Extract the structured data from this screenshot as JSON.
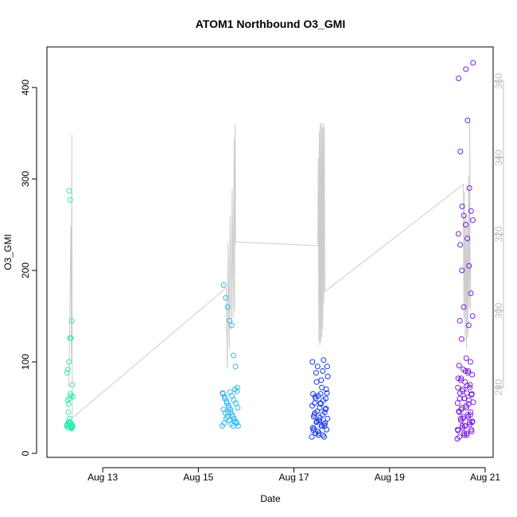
{
  "chart_data": {
    "type": "scatter",
    "title": "ATOM1 Northbound O3_GMI",
    "xlabel": "Date",
    "ylabel": "O3_GMI",
    "xlim": [
      "2016-08-11T20:00:00",
      "2016-08-21T04:00:00"
    ],
    "ylim": [
      0,
      440
    ],
    "x_ticks": [
      "Aug 13",
      "Aug 15",
      "Aug 17",
      "Aug 19",
      "Aug 21"
    ],
    "y_ticks": [
      0,
      100,
      200,
      300,
      400
    ],
    "y2_ticks": [
      280,
      300,
      320,
      340,
      360
    ],
    "y2lim": [
      265,
      363
    ],
    "line_series_color": "#cccccc",
    "point_colors": {
      "aug12": "#33e8b0",
      "aug15": "#2fb8f2",
      "aug17": "#1438f0",
      "aug20": "#7a1ee0"
    },
    "clusters": [
      {
        "date": "Aug 12",
        "color": "#33e8b0",
        "x_start": "2016-08-12T06:00",
        "x_end": "2016-08-12T09:00",
        "o3": [
          30,
          28,
          35,
          33,
          29,
          27,
          31,
          32,
          45,
          60,
          65,
          63,
          75,
          88,
          92,
          100,
          126,
          126,
          145,
          62,
          58,
          54,
          38,
          34,
          30,
          29,
          31,
          33,
          287,
          277,
          28,
          30
        ]
      },
      {
        "date": "Aug 15",
        "color": "#2fb8f2",
        "x_start": "2016-08-15T12:00",
        "x_end": "2016-08-15T20:00",
        "o3": [
          30,
          33,
          35,
          40,
          45,
          50,
          55,
          60,
          65,
          72,
          95,
          107,
          140,
          145,
          160,
          170,
          184,
          30,
          34,
          38,
          42,
          48,
          52,
          57,
          62,
          66,
          68,
          70,
          30,
          32,
          36,
          40,
          44,
          48,
          50,
          55,
          58,
          63,
          67,
          45,
          38,
          33
        ]
      },
      {
        "date": "Aug 17",
        "color": "#1438f0",
        "x_start": "2016-08-17T09:00",
        "x_end": "2016-08-17T17:00",
        "o3": [
          18,
          20,
          24,
          28,
          32,
          36,
          40,
          45,
          50,
          55,
          60,
          65,
          22,
          26,
          30,
          34,
          38,
          42,
          46,
          52,
          58,
          63,
          65,
          18,
          22,
          27,
          33,
          39,
          44,
          49,
          54,
          60,
          66,
          72,
          78,
          84,
          90,
          95,
          100,
          102,
          20,
          25,
          30,
          36,
          42,
          48,
          55,
          62,
          70,
          80,
          88,
          95,
          30,
          35
        ]
      },
      {
        "date": "Aug 20",
        "color": "#7a1ee0",
        "x_start": "2016-08-20T10:00",
        "x_end": "2016-08-20T18:00",
        "o3": [
          16,
          20,
          24,
          28,
          32,
          36,
          40,
          45,
          50,
          55,
          60,
          65,
          70,
          75,
          82,
          90,
          18,
          22,
          26,
          30,
          34,
          38,
          42,
          48,
          54,
          60,
          66,
          72,
          78,
          86,
          92,
          100,
          125,
          140,
          145,
          20,
          25,
          30,
          35,
          40,
          45,
          50,
          58,
          66,
          74,
          82,
          90,
          150,
          160,
          175,
          200,
          205,
          228,
          235,
          240,
          250,
          255,
          260,
          265,
          270,
          290,
          330,
          364,
          410,
          420,
          427,
          22,
          26,
          30,
          34,
          38,
          42,
          46,
          52,
          56,
          60,
          64,
          68,
          72,
          80,
          88,
          96,
          104
        ]
      }
    ],
    "line_points": [
      [
        "2016-08-12T07:00",
        280
      ],
      [
        "2016-08-12T07:30",
        300
      ],
      [
        "2016-08-12T08:00",
        322
      ],
      [
        "2016-08-12T08:15",
        287
      ],
      [
        "2016-08-12T08:30",
        346
      ],
      [
        "2016-08-12T08:45",
        272
      ],
      [
        "2016-08-15T14:00",
        306
      ],
      [
        "2016-08-15T14:30",
        285
      ],
      [
        "2016-08-15T15:00",
        318
      ],
      [
        "2016-08-15T15:30",
        290
      ],
      [
        "2016-08-15T16:00",
        325
      ],
      [
        "2016-08-15T16:30",
        295
      ],
      [
        "2016-08-15T17:00",
        332
      ],
      [
        "2016-08-15T17:30",
        298
      ],
      [
        "2016-08-15T18:00",
        345
      ],
      [
        "2016-08-15T18:15",
        300
      ],
      [
        "2016-08-15T18:30",
        349
      ],
      [
        "2016-08-15T18:40",
        318
      ],
      [
        "2016-08-17T12:00",
        317
      ],
      [
        "2016-08-17T12:15",
        340
      ],
      [
        "2016-08-17T12:30",
        292
      ],
      [
        "2016-08-17T12:45",
        347
      ],
      [
        "2016-08-17T13:00",
        291
      ],
      [
        "2016-08-17T13:15",
        349
      ],
      [
        "2016-08-17T13:30",
        292
      ],
      [
        "2016-08-17T13:45",
        349
      ],
      [
        "2016-08-17T14:00",
        293
      ],
      [
        "2016-08-17T14:15",
        348
      ],
      [
        "2016-08-17T14:30",
        295
      ],
      [
        "2016-08-17T14:45",
        349
      ],
      [
        "2016-08-17T15:00",
        302
      ],
      [
        "2016-08-17T15:15",
        348
      ],
      [
        "2016-08-17T15:30",
        305
      ],
      [
        "2016-08-20T13:00",
        333
      ],
      [
        "2016-08-20T13:20",
        298
      ],
      [
        "2016-08-20T13:40",
        331
      ],
      [
        "2016-08-20T14:00",
        292
      ],
      [
        "2016-08-20T14:20",
        325
      ],
      [
        "2016-08-20T14:40",
        290
      ],
      [
        "2016-08-20T15:00",
        322
      ],
      [
        "2016-08-20T15:20",
        293
      ],
      [
        "2016-08-20T15:40",
        335
      ],
      [
        "2016-08-20T16:00",
        301
      ],
      [
        "2016-08-20T16:15",
        350
      ],
      [
        "2016-08-20T16:30",
        300
      ],
      [
        "2016-08-20T16:45",
        312
      ]
    ]
  }
}
